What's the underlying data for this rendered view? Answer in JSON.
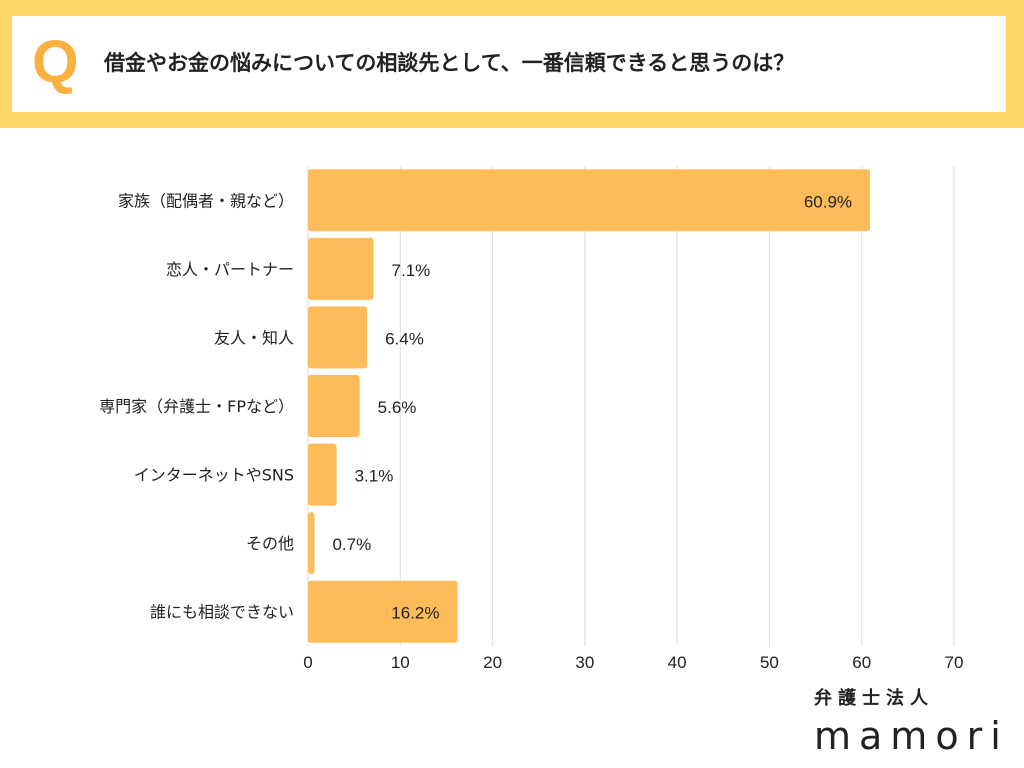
{
  "question": {
    "mark": "Q",
    "text": "借金やお金の悩みについての相談先として、一番信頼できると思うのは？"
  },
  "brand": {
    "line1": "弁護士法人",
    "name": "mamori"
  },
  "colors": {
    "bar": "#fdbb5a",
    "header_band": "#fcd768",
    "q_mark": "#fbb040",
    "grid": "#dddddd",
    "text": "#222222"
  },
  "chart_data": {
    "type": "bar",
    "orientation": "horizontal",
    "categories": [
      "家族（配偶者・親など）",
      "恋人・パートナー",
      "友人・知人",
      "専門家（弁護士・FPなど）",
      "インターネットやSNS",
      "その他",
      "誰にも相談できない"
    ],
    "values": [
      60.9,
      7.1,
      6.4,
      5.6,
      3.1,
      0.7,
      16.2
    ],
    "value_labels": [
      "60.9%",
      "7.1%",
      "6.4%",
      "5.6%",
      "3.1%",
      "0.7%",
      "16.2%"
    ],
    "xlim": [
      0,
      70
    ],
    "xticks": [
      0,
      10,
      20,
      30,
      40,
      50,
      60,
      70
    ],
    "grid": true,
    "legend": "none"
  }
}
